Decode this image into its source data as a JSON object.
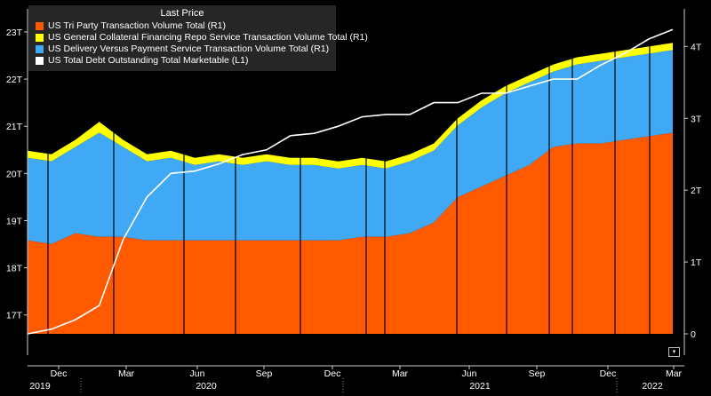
{
  "chart_data": {
    "type": "area",
    "legend": {
      "title": "Last Price",
      "placement": "top-left",
      "entries": [
        {
          "label": "US Tri Party Transaction Volume Total  (R1)",
          "color": "#ff5a00"
        },
        {
          "label": "US General Collateral Financing Repo Service Transaction Volume Total  (R1)",
          "color": "#ffff00"
        },
        {
          "label": "US Delivery Versus Payment Service Transaction Volume Total  (R1)",
          "color": "#3fa9f5"
        },
        {
          "label": "US Total Debt Outstanding Total Marketable  (L1)",
          "color": "#ffffff"
        }
      ]
    },
    "left_axis": {
      "ticks": [
        "17T",
        "18T",
        "19T",
        "20T",
        "21T",
        "22T",
        "23T"
      ],
      "range": [
        16.6,
        23.3
      ]
    },
    "right_axis": {
      "ticks": [
        "0",
        "1T",
        "2T",
        "3T",
        "4T"
      ],
      "range": [
        0,
        4.4
      ]
    },
    "x_axis": {
      "months": [
        "Dec",
        "Mar",
        "Jun",
        "Sep",
        "Dec",
        "Mar",
        "Jun",
        "Sep",
        "Dec",
        "Mar"
      ],
      "years": [
        "2019",
        "2020",
        "2021",
        "2022"
      ]
    },
    "grid": false,
    "x": [
      "2019-12",
      "2020-01",
      "2020-02",
      "2020-03",
      "2020-04",
      "2020-05",
      "2020-06",
      "2020-07",
      "2020-08",
      "2020-09",
      "2020-10",
      "2020-11",
      "2020-12",
      "2021-01",
      "2021-02",
      "2021-03",
      "2021-04",
      "2021-05",
      "2021-06",
      "2021-07",
      "2021-08",
      "2021-09",
      "2021-10",
      "2021-11",
      "2021-12",
      "2022-01",
      "2022-02",
      "2022-03"
    ],
    "series": [
      {
        "name": "US Tri Party Transaction Volume Total  (R1)",
        "axis": "right",
        "color": "#ff5a00",
        "values": [
          1.3,
          1.25,
          1.4,
          1.35,
          1.35,
          1.3,
          1.3,
          1.3,
          1.3,
          1.3,
          1.3,
          1.3,
          1.3,
          1.3,
          1.35,
          1.35,
          1.4,
          1.55,
          1.9,
          2.05,
          2.2,
          2.35,
          2.6,
          2.65,
          2.65,
          2.7,
          2.75,
          2.8
        ]
      },
      {
        "name": "US Delivery Versus Payment Service Transaction Volume Total  (R1)",
        "axis": "right",
        "color": "#3fa9f5",
        "values": [
          1.15,
          1.15,
          1.2,
          1.45,
          1.25,
          1.1,
          1.15,
          1.05,
          1.1,
          1.05,
          1.1,
          1.05,
          1.05,
          1.0,
          1.0,
          0.95,
          1.0,
          1.0,
          1.0,
          1.1,
          1.15,
          1.15,
          1.05,
          1.1,
          1.15,
          1.15,
          1.15,
          1.15
        ]
      },
      {
        "name": "US General Collateral Financing Repo Service Transaction Volume Total  (R1)",
        "axis": "right",
        "color": "#ffff00",
        "values": [
          0.1,
          0.1,
          0.1,
          0.15,
          0.1,
          0.1,
          0.1,
          0.1,
          0.1,
          0.1,
          0.1,
          0.1,
          0.1,
          0.1,
          0.1,
          0.1,
          0.1,
          0.1,
          0.1,
          0.1,
          0.1,
          0.1,
          0.1,
          0.1,
          0.1,
          0.1,
          0.1,
          0.1
        ]
      },
      {
        "name": "US Total Debt Outstanding Total Marketable  (L1)",
        "axis": "left",
        "color": "#ffffff",
        "values": [
          16.6,
          16.7,
          16.9,
          17.2,
          18.6,
          19.5,
          20.0,
          20.05,
          20.2,
          20.4,
          20.5,
          20.8,
          20.85,
          21.0,
          21.2,
          21.25,
          21.25,
          21.5,
          21.5,
          21.7,
          21.7,
          21.85,
          22.0,
          22.0,
          22.3,
          22.55,
          22.85,
          23.05
        ]
      }
    ]
  }
}
